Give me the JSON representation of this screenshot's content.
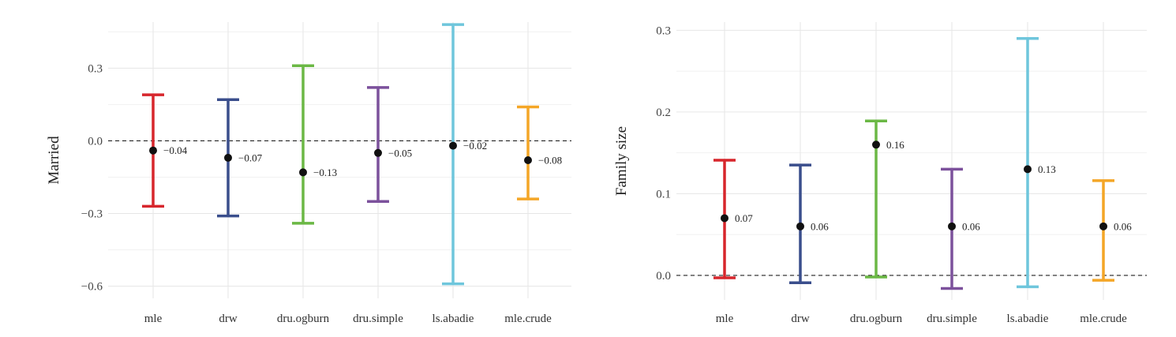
{
  "chart_data": [
    {
      "type": "errorbar",
      "ylabel": "Married",
      "xlabel": "",
      "ylim": [
        -0.65,
        0.49
      ],
      "yticks": [
        -0.6,
        -0.3,
        0.0,
        0.3
      ],
      "ytick_labels": [
        "−0.6",
        "−0.3",
        "0.0",
        "0.3"
      ],
      "reference_line": 0,
      "grid": true,
      "categories": [
        "mle",
        "drw",
        "dru.ogburn",
        "dru.simple",
        "ls.abadie",
        "mle.crude"
      ],
      "estimates": [
        -0.04,
        -0.07,
        -0.13,
        -0.05,
        -0.02,
        -0.08
      ],
      "lower": [
        -0.27,
        -0.31,
        -0.34,
        -0.25,
        -0.59,
        -0.24
      ],
      "upper": [
        0.19,
        0.17,
        0.31,
        0.22,
        0.48,
        0.14
      ],
      "value_labels": [
        "−0.04",
        "−0.07",
        "−0.13",
        "−0.05",
        "−0.02",
        "−0.08"
      ]
    },
    {
      "type": "errorbar",
      "ylabel": "Family size",
      "xlabel": "",
      "ylim": [
        -0.03,
        0.31
      ],
      "yticks": [
        0.0,
        0.1,
        0.2,
        0.3
      ],
      "ytick_labels": [
        "0.0",
        "0.1",
        "0.2",
        "0.3"
      ],
      "reference_line": 0,
      "grid": true,
      "categories": [
        "mle",
        "drw",
        "dru.ogburn",
        "dru.simple",
        "ls.abadie",
        "mle.crude"
      ],
      "estimates": [
        0.07,
        0.06,
        0.16,
        0.06,
        0.13,
        0.06
      ],
      "lower": [
        -0.003,
        -0.009,
        -0.002,
        -0.016,
        -0.014,
        -0.006
      ],
      "upper": [
        0.141,
        0.135,
        0.189,
        0.13,
        0.29,
        0.116
      ],
      "value_labels": [
        "0.07",
        "0.06",
        "0.16",
        "0.06",
        "0.13",
        "0.06"
      ]
    }
  ],
  "colors": [
    "#d7262c",
    "#3a4e8c",
    "#6bb845",
    "#7c519c",
    "#6fc6dc",
    "#f4a627"
  ],
  "point_color": "#111111"
}
